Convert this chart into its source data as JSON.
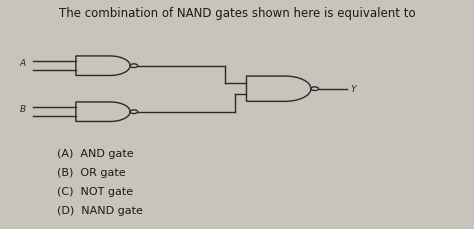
{
  "title": "The combination of NAND gates shown here is equivalent to",
  "title_fontsize": 8.5,
  "bg_color": "#c8c3bb",
  "text_color": "#1a1a1a",
  "options": [
    "(A)  AND gate",
    "(B)  OR gate",
    "(C)  NOT gate",
    "(D)  NAND gate"
  ],
  "input_a_label": "A",
  "input_b_label": "B",
  "output_label": "Y",
  "gate_line_color": "#2a2a2a",
  "gate_fill": "#c8c3bb",
  "bubble_r": 0.08,
  "lw": 1.0
}
